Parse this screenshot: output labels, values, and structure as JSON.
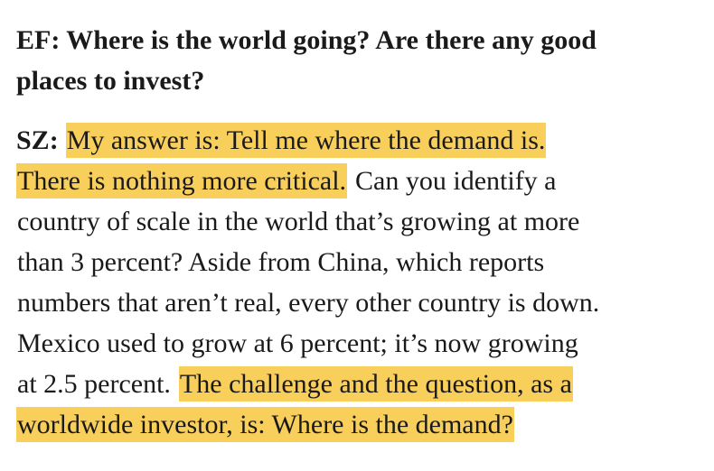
{
  "question": {
    "lines": [
      "EF: Where is the world going? Are there any good",
      "places to invest?"
    ]
  },
  "answer": {
    "speaker": "SZ:",
    "highlight_color": "#f9cf5c",
    "lines": [
      [
        {
          "text": "My answer is: Tell me where the demand is.",
          "highlight": true
        }
      ],
      [
        {
          "text": "There is nothing more critical.",
          "highlight": true
        },
        {
          "text": "Can you identify a",
          "highlight": false
        }
      ],
      [
        {
          "text": "country of scale in the world that’s growing at more",
          "highlight": false
        }
      ],
      [
        {
          "text": "than 3 percent? Aside from China, which reports",
          "highlight": false
        }
      ],
      [
        {
          "text": "numbers that aren’t real, every other country is down.",
          "highlight": false
        }
      ],
      [
        {
          "text": "Mexico used to grow at 6 percent; it’s now growing",
          "highlight": false
        }
      ],
      [
        {
          "text": "at 2.5 percent.",
          "highlight": false
        },
        {
          "text": "The challenge and the question, as a",
          "highlight": true
        }
      ],
      [
        {
          "text": "worldwide investor, is: Where is the demand?",
          "highlight": true
        }
      ]
    ]
  }
}
